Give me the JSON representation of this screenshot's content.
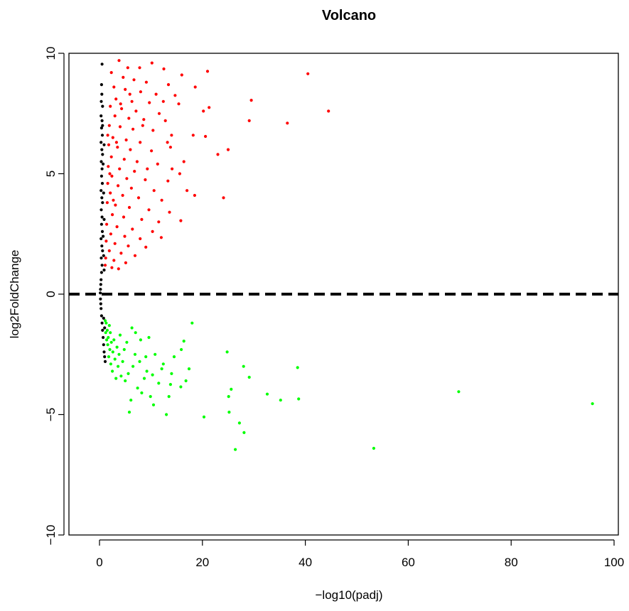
{
  "chart_data": {
    "type": "scatter",
    "title": "Volcano",
    "xlabel": "−log10(padj)",
    "ylabel": "log2FoldChange",
    "xlim": [
      0,
      100
    ],
    "ylim": [
      -10,
      10
    ],
    "xticks": [
      0,
      20,
      40,
      60,
      80,
      100
    ],
    "yticks": [
      -10,
      -5,
      0,
      5,
      10
    ],
    "xtick_labels": [
      "0",
      "20",
      "40",
      "60",
      "80",
      "100"
    ],
    "ytick_labels": [
      "−10",
      "−5",
      "0",
      "5",
      "10"
    ],
    "reference_line": {
      "y": 0,
      "style": "dashed",
      "color": "#000000"
    },
    "grid": false,
    "legend": "none",
    "series": [
      {
        "color": "#ff0000",
        "points": [
          [
            3.8,
            9.7
          ],
          [
            10.2,
            9.6
          ],
          [
            21.0,
            9.25
          ],
          [
            40.5,
            9.15
          ],
          [
            5.5,
            9.4
          ],
          [
            7.8,
            9.4
          ],
          [
            12.5,
            9.35
          ],
          [
            16.0,
            9.1
          ],
          [
            2.3,
            9.2
          ],
          [
            4.6,
            9.0
          ],
          [
            6.7,
            8.9
          ],
          [
            9.1,
            8.8
          ],
          [
            13.4,
            8.7
          ],
          [
            18.6,
            8.6
          ],
          [
            2.8,
            8.6
          ],
          [
            5.0,
            8.5
          ],
          [
            8.0,
            8.4
          ],
          [
            11.0,
            8.3
          ],
          [
            14.7,
            8.25
          ],
          [
            3.2,
            8.1
          ],
          [
            6.3,
            8.0
          ],
          [
            9.7,
            7.95
          ],
          [
            15.4,
            7.9
          ],
          [
            29.5,
            8.05
          ],
          [
            2.1,
            7.8
          ],
          [
            4.3,
            7.7
          ],
          [
            7.1,
            7.6
          ],
          [
            11.6,
            7.5
          ],
          [
            20.2,
            7.6
          ],
          [
            21.3,
            7.75
          ],
          [
            44.5,
            7.6
          ],
          [
            3.0,
            7.4
          ],
          [
            5.7,
            7.3
          ],
          [
            8.6,
            7.25
          ],
          [
            12.8,
            7.2
          ],
          [
            29.1,
            7.2
          ],
          [
            36.5,
            7.1
          ],
          [
            1.9,
            7.0
          ],
          [
            4.0,
            6.95
          ],
          [
            6.5,
            6.85
          ],
          [
            10.4,
            6.8
          ],
          [
            14.0,
            6.6
          ],
          [
            18.2,
            6.6
          ],
          [
            20.6,
            6.55
          ],
          [
            2.6,
            6.5
          ],
          [
            5.2,
            6.4
          ],
          [
            7.9,
            6.3
          ],
          [
            13.2,
            6.3
          ],
          [
            1.8,
            6.2
          ],
          [
            3.5,
            6.1
          ],
          [
            6.0,
            6.0
          ],
          [
            10.1,
            5.95
          ],
          [
            25.0,
            6.0
          ],
          [
            23.0,
            5.8
          ],
          [
            2.3,
            5.7
          ],
          [
            4.8,
            5.6
          ],
          [
            7.3,
            5.5
          ],
          [
            11.3,
            5.4
          ],
          [
            16.4,
            5.5
          ],
          [
            1.7,
            5.3
          ],
          [
            3.9,
            5.2
          ],
          [
            6.8,
            5.1
          ],
          [
            14.1,
            5.2
          ],
          [
            15.6,
            5.0
          ],
          [
            2.4,
            4.9
          ],
          [
            5.3,
            4.8
          ],
          [
            8.9,
            4.75
          ],
          [
            13.3,
            4.7
          ],
          [
            17.0,
            4.3
          ],
          [
            18.5,
            4.1
          ],
          [
            1.6,
            4.6
          ],
          [
            3.6,
            4.5
          ],
          [
            6.2,
            4.4
          ],
          [
            10.6,
            4.3
          ],
          [
            24.1,
            4.0
          ],
          [
            2.1,
            4.2
          ],
          [
            4.5,
            4.1
          ],
          [
            7.6,
            4.0
          ],
          [
            12.1,
            3.9
          ],
          [
            1.5,
            3.8
          ],
          [
            3.1,
            3.7
          ],
          [
            5.8,
            3.6
          ],
          [
            9.6,
            3.5
          ],
          [
            13.6,
            3.4
          ],
          [
            15.8,
            3.05
          ],
          [
            2.5,
            3.3
          ],
          [
            4.7,
            3.2
          ],
          [
            8.2,
            3.1
          ],
          [
            11.5,
            3.0
          ],
          [
            1.4,
            2.9
          ],
          [
            3.4,
            2.8
          ],
          [
            6.4,
            2.7
          ],
          [
            10.3,
            2.6
          ],
          [
            2.2,
            2.5
          ],
          [
            4.9,
            2.4
          ],
          [
            7.9,
            2.3
          ],
          [
            12.0,
            2.35
          ],
          [
            1.3,
            2.2
          ],
          [
            3.0,
            2.1
          ],
          [
            5.6,
            2.0
          ],
          [
            9.0,
            1.95
          ],
          [
            1.9,
            1.8
          ],
          [
            4.2,
            1.7
          ],
          [
            6.9,
            1.6
          ],
          [
            1.2,
            1.5
          ],
          [
            2.8,
            1.4
          ],
          [
            5.1,
            1.3
          ],
          [
            1.1,
            1.2
          ],
          [
            2.4,
            1.1
          ],
          [
            3.7,
            1.05
          ],
          [
            1.6,
            6.6
          ],
          [
            2.0,
            5.0
          ],
          [
            2.7,
            3.9
          ],
          [
            3.3,
            6.3
          ],
          [
            4.1,
            7.9
          ],
          [
            5.9,
            8.3
          ],
          [
            8.4,
            7.0
          ],
          [
            9.3,
            5.2
          ],
          [
            12.4,
            8.0
          ],
          [
            13.8,
            6.1
          ]
        ]
      },
      {
        "color": "#00ff00",
        "points": [
          [
            95.8,
            -4.55
          ],
          [
            69.8,
            -4.05
          ],
          [
            53.3,
            -6.4
          ],
          [
            38.7,
            -4.35
          ],
          [
            38.5,
            -3.05
          ],
          [
            35.2,
            -4.4
          ],
          [
            32.6,
            -4.15
          ],
          [
            29.1,
            -3.45
          ],
          [
            28.0,
            -3.0
          ],
          [
            28.1,
            -5.75
          ],
          [
            27.2,
            -5.35
          ],
          [
            26.4,
            -6.45
          ],
          [
            25.6,
            -3.95
          ],
          [
            25.1,
            -4.25
          ],
          [
            25.2,
            -4.9
          ],
          [
            24.8,
            -2.4
          ],
          [
            20.3,
            -5.1
          ],
          [
            17.4,
            -3.1
          ],
          [
            16.8,
            -3.6
          ],
          [
            16.4,
            -1.95
          ],
          [
            15.8,
            -3.85
          ],
          [
            15.9,
            -2.3
          ],
          [
            14.0,
            -3.3
          ],
          [
            13.8,
            -3.75
          ],
          [
            13.5,
            -4.25
          ],
          [
            13.0,
            -5.0
          ],
          [
            12.4,
            -2.9
          ],
          [
            10.5,
            -4.6
          ],
          [
            10.3,
            -3.35
          ],
          [
            9.9,
            -4.25
          ],
          [
            9.6,
            -1.8
          ],
          [
            9.2,
            -3.2
          ],
          [
            8.7,
            -3.5
          ],
          [
            8.2,
            -4.1
          ],
          [
            7.8,
            -2.8
          ],
          [
            7.4,
            -3.9
          ],
          [
            6.9,
            -2.5
          ],
          [
            6.5,
            -3.0
          ],
          [
            6.1,
            -4.4
          ],
          [
            5.8,
            -4.9
          ],
          [
            5.6,
            -3.3
          ],
          [
            5.3,
            -2.0
          ],
          [
            5.0,
            -3.6
          ],
          [
            4.8,
            -2.3
          ],
          [
            4.5,
            -2.8
          ],
          [
            4.2,
            -3.4
          ],
          [
            4.0,
            -1.7
          ],
          [
            3.8,
            -2.5
          ],
          [
            3.6,
            -3.0
          ],
          [
            3.4,
            -2.2
          ],
          [
            3.2,
            -3.5
          ],
          [
            3.0,
            -2.7
          ],
          [
            2.8,
            -1.9
          ],
          [
            2.6,
            -2.4
          ],
          [
            2.5,
            -3.2
          ],
          [
            2.3,
            -2.0
          ],
          [
            2.2,
            -2.9
          ],
          [
            2.1,
            -1.6
          ],
          [
            2.0,
            -2.3
          ],
          [
            1.9,
            -1.3
          ],
          [
            1.8,
            -2.6
          ],
          [
            1.7,
            -1.8
          ],
          [
            1.6,
            -2.1
          ],
          [
            1.5,
            -1.5
          ],
          [
            1.4,
            -1.9
          ],
          [
            1.3,
            -1.2
          ],
          [
            1.2,
            -1.6
          ],
          [
            1.1,
            -1.1
          ],
          [
            6.3,
            -1.4
          ],
          [
            7.0,
            -1.6
          ],
          [
            8.0,
            -1.9
          ],
          [
            9.0,
            -2.6
          ],
          [
            10.8,
            -2.5
          ],
          [
            11.5,
            -3.7
          ],
          [
            12.1,
            -3.1
          ],
          [
            14.5,
            -2.6
          ],
          [
            18.0,
            -1.2
          ]
        ]
      },
      {
        "color": "#000000",
        "points": [
          [
            0.5,
            9.55
          ],
          [
            0.4,
            8.7
          ],
          [
            0.45,
            8.3
          ],
          [
            0.35,
            8.0
          ],
          [
            0.6,
            7.8
          ],
          [
            0.3,
            7.4
          ],
          [
            0.5,
            7.2
          ],
          [
            0.4,
            6.9
          ],
          [
            0.55,
            6.6
          ],
          [
            0.3,
            6.3
          ],
          [
            0.45,
            6.0
          ],
          [
            0.6,
            5.8
          ],
          [
            0.35,
            5.5
          ],
          [
            0.5,
            5.2
          ],
          [
            0.4,
            4.9
          ],
          [
            0.55,
            4.6
          ],
          [
            0.3,
            4.3
          ],
          [
            0.45,
            4.0
          ],
          [
            0.6,
            3.8
          ],
          [
            0.35,
            3.5
          ],
          [
            0.5,
            3.2
          ],
          [
            0.4,
            2.9
          ],
          [
            0.55,
            2.6
          ],
          [
            0.3,
            2.3
          ],
          [
            0.45,
            2.0
          ],
          [
            0.6,
            1.8
          ],
          [
            0.35,
            1.5
          ],
          [
            0.5,
            1.2
          ],
          [
            0.4,
            0.9
          ],
          [
            0.3,
            0.6
          ],
          [
            0.25,
            0.4
          ],
          [
            0.2,
            0.2
          ],
          [
            0.15,
            0.05
          ],
          [
            0.2,
            -0.2
          ],
          [
            0.25,
            -0.4
          ],
          [
            0.3,
            -0.6
          ],
          [
            0.4,
            -0.9
          ],
          [
            0.5,
            -1.2
          ],
          [
            0.6,
            -1.5
          ],
          [
            0.7,
            -1.8
          ],
          [
            0.8,
            -2.1
          ],
          [
            0.9,
            -2.4
          ],
          [
            1.0,
            -2.6
          ],
          [
            1.1,
            -2.8
          ],
          [
            0.8,
            -1.0
          ],
          [
            1.0,
            -1.4
          ],
          [
            0.9,
            1.0
          ],
          [
            0.8,
            1.6
          ],
          [
            0.7,
            2.4
          ],
          [
            0.9,
            3.1
          ],
          [
            0.8,
            4.2
          ],
          [
            0.7,
            5.4
          ],
          [
            0.9,
            6.2
          ],
          [
            0.6,
            7.0
          ]
        ]
      }
    ]
  }
}
